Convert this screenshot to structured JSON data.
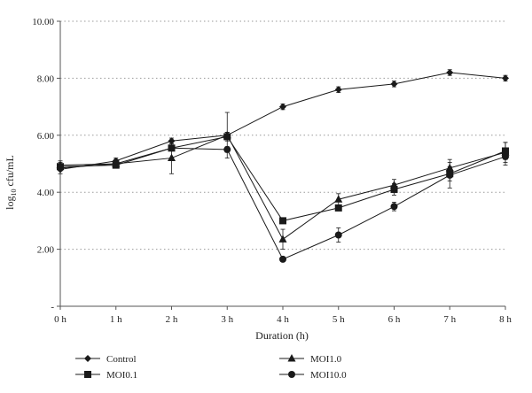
{
  "chart_data": {
    "type": "line",
    "title": "",
    "xlabel": "Duration (h)",
    "ylabel": {
      "prefix": "log",
      "subscript": "10",
      "suffix": " cfu/mL"
    },
    "categories": [
      "0 h",
      "1 h",
      "2 h",
      "3 h",
      "4 h",
      "5 h",
      "6 h",
      "7 h",
      "8 h"
    ],
    "ylim": [
      0,
      10
    ],
    "yticks": [
      {
        "value": 0,
        "label": "-"
      },
      {
        "value": 2,
        "label": "2.00"
      },
      {
        "value": 4,
        "label": "4.00"
      },
      {
        "value": 6,
        "label": "6.00"
      },
      {
        "value": 8,
        "label": "8.00"
      },
      {
        "value": 10,
        "label": "10.00"
      }
    ],
    "grid": "horizontal-dotted",
    "legend_position": "bottom",
    "series": [
      {
        "name": "Control",
        "marker": "diamond",
        "values": [
          4.8,
          5.1,
          5.8,
          6.0,
          7.0,
          7.6,
          7.8,
          8.2,
          8.0
        ],
        "errors": [
          0.15,
          0.1,
          0.1,
          0.8,
          0.1,
          0.1,
          0.1,
          0.1,
          0.1
        ]
      },
      {
        "name": "MOI0.1",
        "marker": "square",
        "values": [
          4.9,
          4.95,
          5.55,
          5.95,
          3.0,
          3.45,
          4.1,
          4.65,
          5.45
        ],
        "errors": [
          0.15,
          0.1,
          0.1,
          0.15,
          0.1,
          0.1,
          0.2,
          0.25,
          0.3
        ]
      },
      {
        "name": "MOI1.0",
        "marker": "triangle",
        "values": [
          4.95,
          5.0,
          5.2,
          6.0,
          2.35,
          3.75,
          4.25,
          4.85,
          5.4
        ],
        "errors": [
          0.15,
          0.15,
          0.55,
          0.1,
          0.35,
          0.2,
          0.2,
          0.3,
          0.35
        ]
      },
      {
        "name": "MOI10.0",
        "marker": "circle",
        "values": [
          4.85,
          5.0,
          5.55,
          5.5,
          1.65,
          2.5,
          3.5,
          4.6,
          5.25
        ],
        "errors": [
          0.1,
          0.1,
          0.1,
          0.1,
          0.05,
          0.25,
          0.15,
          0.45,
          0.3
        ]
      }
    ]
  }
}
